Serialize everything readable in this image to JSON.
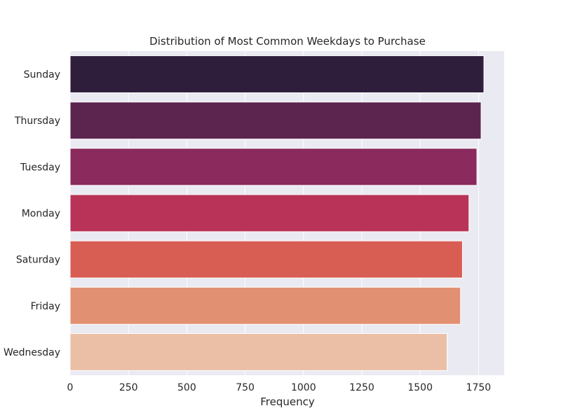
{
  "chart_data": {
    "type": "bar",
    "orientation": "horizontal",
    "title": "Distribution of Most Common Weekdays to Purchase",
    "xlabel": "Frequency",
    "ylabel": "",
    "categories": [
      "Sunday",
      "Thursday",
      "Tuesday",
      "Monday",
      "Saturday",
      "Friday",
      "Wednesday"
    ],
    "values": [
      1773,
      1761,
      1743,
      1709,
      1681,
      1673,
      1615
    ],
    "xlim": [
      0,
      1860
    ],
    "xticks": [
      0,
      250,
      500,
      750,
      1000,
      1250,
      1500,
      1750
    ],
    "grid": true,
    "legend": "none",
    "colors": [
      "#2e1e3b",
      "#5c2550",
      "#8a2a5d",
      "#b83357",
      "#d85e54",
      "#e29072",
      "#ebbfa5"
    ],
    "background": "#eaeaf2",
    "gridline_color": "#ffffff"
  }
}
